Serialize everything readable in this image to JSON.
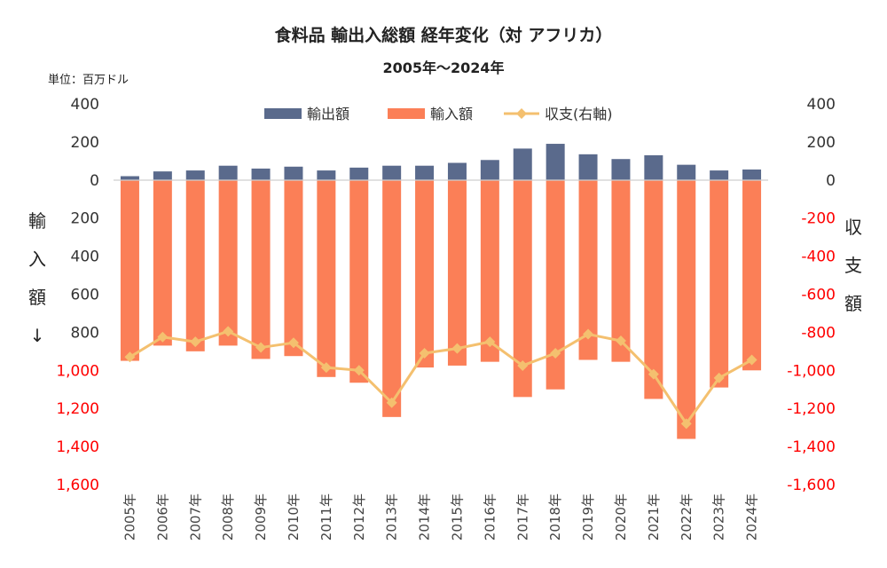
{
  "chart_data": {
    "type": "bar",
    "title": "食料品 輸出入総額 経年変化（対 アフリカ）",
    "subtitle": "2005年～2024年",
    "unit_label": "単位：百万ドル",
    "left_axis_label": [
      "輸",
      "入",
      "額",
      "↓"
    ],
    "right_axis_label": [
      "収",
      "支",
      "額"
    ],
    "categories": [
      "2005年",
      "2006年",
      "2007年",
      "2008年",
      "2009年",
      "2010年",
      "2011年",
      "2012年",
      "2013年",
      "2014年",
      "2015年",
      "2016年",
      "2017年",
      "2018年",
      "2019年",
      "2020年",
      "2021年",
      "2022年",
      "2023年",
      "2024年"
    ],
    "series": [
      {
        "name": "輸出額",
        "type": "bar",
        "color": "#5a6a8c",
        "values": [
          20,
          45,
          50,
          75,
          60,
          70,
          50,
          65,
          75,
          75,
          90,
          105,
          165,
          190,
          135,
          110,
          130,
          80,
          50,
          55
        ]
      },
      {
        "name": "輸入額",
        "type": "bar",
        "color": "#fb7f57",
        "values": [
          950,
          870,
          900,
          870,
          940,
          925,
          1035,
          1065,
          1245,
          985,
          975,
          955,
          1140,
          1100,
          945,
          955,
          1150,
          1360,
          1090,
          1000
        ]
      },
      {
        "name": "収支(右軸)",
        "type": "line",
        "color": "#f4c06f",
        "axis": "right",
        "values": [
          -930,
          -825,
          -850,
          -795,
          -880,
          -855,
          -985,
          -1000,
          -1170,
          -910,
          -885,
          -850,
          -975,
          -910,
          -810,
          -845,
          -1020,
          -1280,
          -1040,
          -945
        ]
      }
    ],
    "left_axis": {
      "ylim": [
        -400,
        1600
      ],
      "ticks": [
        {
          "label": "400",
          "color": "#333333"
        },
        {
          "label": "200",
          "color": "#333333"
        },
        {
          "label": "0",
          "color": "#333333"
        },
        {
          "label": "200",
          "color": "#333333"
        },
        {
          "label": "400",
          "color": "#333333"
        },
        {
          "label": "600",
          "color": "#333333"
        },
        {
          "label": "800",
          "color": "#333333"
        },
        {
          "label": "1,000",
          "color": "#ff0000"
        },
        {
          "label": "1,200",
          "color": "#ff0000"
        },
        {
          "label": "1,400",
          "color": "#ff0000"
        },
        {
          "label": "1,600",
          "color": "#ff0000"
        }
      ]
    },
    "right_axis": {
      "ylim": [
        -1600,
        400
      ],
      "ticks": [
        {
          "label": "400",
          "color": "#333333"
        },
        {
          "label": "200",
          "color": "#333333"
        },
        {
          "label": "0",
          "color": "#333333"
        },
        {
          "label": "-200",
          "color": "#ff0000"
        },
        {
          "label": "-400",
          "color": "#ff0000"
        },
        {
          "label": "-600",
          "color": "#ff0000"
        },
        {
          "label": "-800",
          "color": "#ff0000"
        },
        {
          "label": "-1,000",
          "color": "#ff0000"
        },
        {
          "label": "-1,200",
          "color": "#ff0000"
        },
        {
          "label": "-1,400",
          "color": "#ff0000"
        },
        {
          "label": "-1,600",
          "color": "#ff0000"
        }
      ]
    },
    "legend_position": "top",
    "grid": false
  }
}
